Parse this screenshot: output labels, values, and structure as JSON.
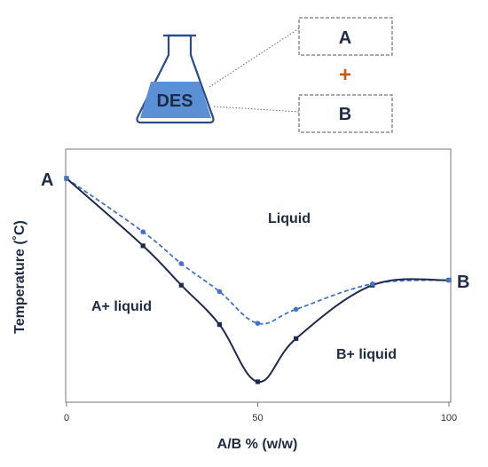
{
  "flask": {
    "label": "DES"
  },
  "components": {
    "a": "A",
    "plus": "+",
    "b": "B"
  },
  "chart_data": {
    "type": "line",
    "xlabel": "A/B % (w/w)",
    "ylabel": "Temperature (˚C)",
    "x_ticks": [
      "0",
      "50",
      "100"
    ],
    "xlim": [
      0,
      100
    ],
    "ylim": [
      0,
      1
    ],
    "end_labels": {
      "left": "A",
      "right": "B"
    },
    "region_labels": {
      "liquid": "Liquid",
      "a_liquid": "A+ liquid",
      "b_liquid": "B+ liquid"
    },
    "series": [
      {
        "style": "solid",
        "color": "#1f2a4f",
        "x": [
          0,
          20,
          30,
          40,
          50,
          60,
          80,
          100
        ],
        "y": [
          0.8,
          0.535,
          0.38,
          0.225,
          0.0,
          0.17,
          0.38,
          0.4
        ]
      },
      {
        "style": "dashed",
        "color": "#4472c4",
        "x": [
          0,
          20,
          30,
          40,
          50,
          60,
          80,
          100
        ],
        "y": [
          0.8,
          0.59,
          0.465,
          0.355,
          0.23,
          0.285,
          0.385,
          0.4
        ]
      }
    ]
  },
  "colors": {
    "accent": "#4472c4",
    "dark": "#1f2a4f",
    "plus": "#c55a11"
  }
}
